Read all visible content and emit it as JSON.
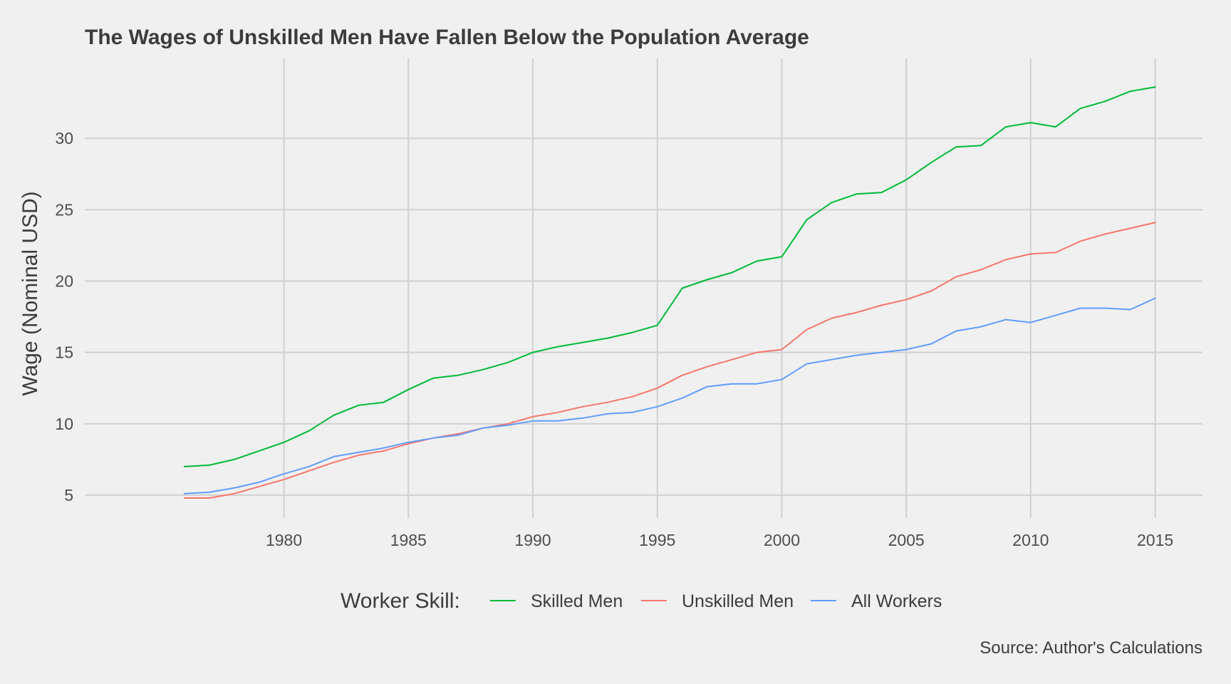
{
  "chart_data": {
    "type": "line",
    "title": "The Wages of Unskilled Men Have Fallen Below the Population Average",
    "ylabel": "Wage (Nominal USD)",
    "xlabel": "",
    "caption": "Source: Author's Calculations",
    "legend": {
      "title": "Worker Skill:",
      "placement": "bottom"
    },
    "grid": true,
    "xlim": [
      1972,
      2016.9
    ],
    "ylim": [
      3.4,
      35.6
    ],
    "x_ticks": [
      1980,
      1985,
      1990,
      1995,
      2000,
      2005,
      2010,
      2015
    ],
    "y_ticks": [
      5,
      10,
      15,
      20,
      25,
      30
    ],
    "x": [
      1976,
      1977,
      1978,
      1979,
      1980,
      1981,
      1982,
      1983,
      1984,
      1985,
      1986,
      1987,
      1988,
      1989,
      1990,
      1991,
      1992,
      1993,
      1994,
      1995,
      1996,
      1997,
      1998,
      1999,
      2000,
      2001,
      2002,
      2003,
      2004,
      2005,
      2006,
      2007,
      2008,
      2009,
      2010,
      2011,
      2012,
      2013,
      2014,
      2015
    ],
    "series": [
      {
        "name": "Skilled Men",
        "color": "#00ba38",
        "values": [
          7.0,
          7.1,
          7.5,
          8.1,
          8.7,
          9.5,
          10.6,
          11.3,
          11.5,
          12.4,
          13.2,
          13.4,
          13.8,
          14.3,
          15.0,
          15.4,
          15.7,
          16.0,
          16.4,
          16.9,
          19.5,
          20.1,
          20.6,
          21.4,
          21.7,
          24.3,
          25.5,
          26.1,
          26.2,
          27.1,
          28.3,
          29.4,
          29.5,
          30.8,
          31.1,
          30.8,
          32.1,
          32.6,
          33.3,
          33.6
        ]
      },
      {
        "name": "Unskilled Men",
        "color": "#f8766d",
        "values": [
          4.8,
          4.8,
          5.1,
          5.6,
          6.1,
          6.7,
          7.3,
          7.8,
          8.1,
          8.6,
          9.0,
          9.3,
          9.7,
          10.0,
          10.5,
          10.8,
          11.2,
          11.5,
          11.9,
          12.5,
          13.4,
          14.0,
          14.5,
          15.0,
          15.2,
          16.6,
          17.4,
          17.8,
          18.3,
          18.7,
          19.3,
          20.3,
          20.8,
          21.5,
          21.9,
          22.0,
          22.8,
          23.3,
          23.7,
          24.1
        ]
      },
      {
        "name": "All Workers",
        "color": "#619cff",
        "values": [
          5.1,
          5.2,
          5.5,
          5.9,
          6.5,
          7.0,
          7.7,
          8.0,
          8.3,
          8.7,
          9.0,
          9.2,
          9.7,
          9.9,
          10.2,
          10.2,
          10.4,
          10.7,
          10.8,
          11.2,
          11.8,
          12.6,
          12.8,
          12.8,
          13.1,
          14.2,
          14.5,
          14.8,
          15.0,
          15.2,
          15.6,
          16.5,
          16.8,
          17.3,
          17.1,
          17.6,
          18.1,
          18.1,
          18.0,
          18.8
        ]
      }
    ]
  }
}
